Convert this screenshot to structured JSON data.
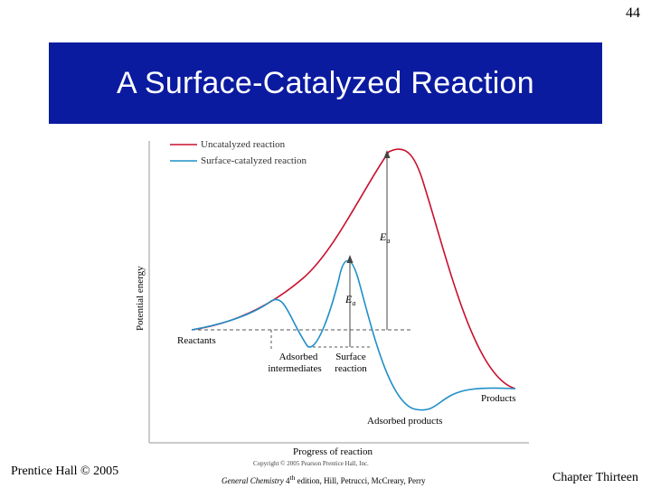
{
  "page_number": "44",
  "title": "A Surface-Catalyzed Reaction",
  "figure": {
    "ylabel": "Potential energy",
    "xlabel": "Progress of reaction",
    "legend": [
      {
        "label": "Uncatalyzed reaction",
        "color": "#c8102e"
      },
      {
        "label": "Surface-catalyzed reaction",
        "color": "#1f8fc8"
      }
    ],
    "labels": {
      "reactants": "Reactants",
      "adsorbed_intermediates_1": "Adsorbed",
      "adsorbed_intermediates_2": "intermediates",
      "surface_reaction_1": "Surface",
      "surface_reaction_2": "reaction",
      "products": "Products",
      "adsorbed_products": "Adsorbed products",
      "ea_uncat": "E",
      "ea_uncat_sub": "a",
      "ea_cat": "E",
      "ea_cat_sub": "a"
    },
    "copyright": "Copyright © 2005 Pearson Prentice Hall, Inc."
  },
  "footer": {
    "left": "Prentice Hall © 2005",
    "mid_italic": "General Chemistry",
    "mid_edition": " 4",
    "mid_sup": "th",
    "mid_rest": " edition, Hill, Petrucci, McCreary, Perry",
    "right": "Chapter Thirteen"
  }
}
